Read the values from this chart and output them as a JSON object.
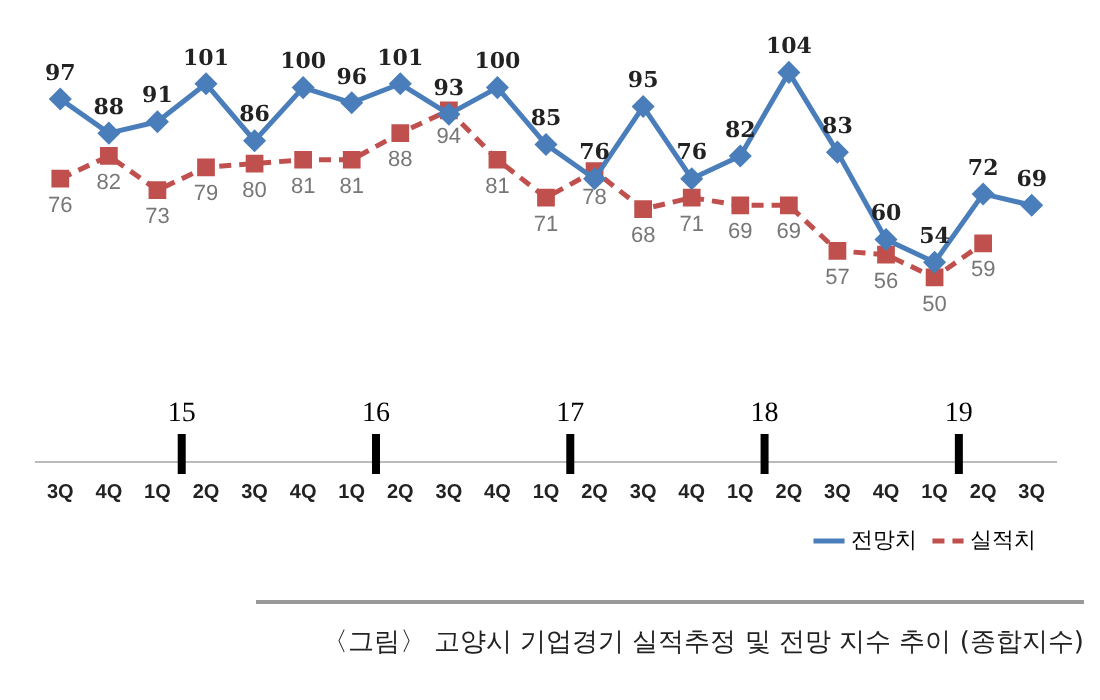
{
  "chart_data": {
    "type": "line",
    "categories": [
      "3Q",
      "4Q",
      "1Q",
      "2Q",
      "3Q",
      "4Q",
      "1Q",
      "2Q",
      "3Q",
      "4Q",
      "1Q",
      "2Q",
      "3Q",
      "4Q",
      "1Q",
      "2Q",
      "3Q",
      "4Q",
      "1Q",
      "2Q",
      "3Q"
    ],
    "series": [
      {
        "name": "전망치",
        "color": "#4a7ebb",
        "marker": "diamond",
        "line_style": "solid",
        "values": [
          97,
          88,
          91,
          101,
          86,
          100,
          96,
          101,
          93,
          100,
          85,
          76,
          95,
          76,
          82,
          104,
          83,
          60,
          54,
          72,
          69
        ]
      },
      {
        "name": "실적치",
        "color": "#c0504d",
        "marker": "square",
        "line_style": "dashed",
        "values": [
          76,
          82,
          73,
          79,
          80,
          81,
          81,
          88,
          94,
          81,
          71,
          78,
          68,
          71,
          69,
          69,
          57,
          56,
          50,
          59,
          null
        ]
      }
    ],
    "data_labels": true,
    "legend": "bottom right",
    "grid": false,
    "annotations": [
      "15",
      "16",
      "17",
      "18",
      "19",
      "〈그림〉 고양시 기업경기 실적추정 및 전망 지수 추이 (종합지수)"
    ]
  }
}
